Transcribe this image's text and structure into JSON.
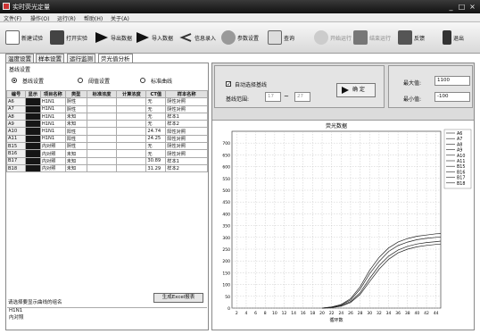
{
  "window": {
    "title": "实时荧光定量",
    "buttons": [
      "_",
      "□",
      "×"
    ]
  },
  "menu": [
    "文件(F)",
    "操作(O)",
    "运行(R)",
    "帮助(H)",
    "关于(A)"
  ],
  "toolbar": [
    {
      "label": "新建试验",
      "icon": "new-experiment-icon"
    },
    {
      "label": "打开实验",
      "icon": "open-experiment-icon"
    },
    {
      "label": "导出数据",
      "icon": "export-data-icon"
    },
    {
      "label": "导入数据",
      "icon": "import-data-icon"
    },
    {
      "label": "信息录入",
      "icon": "info-entry-icon"
    },
    {
      "label": "参数设置",
      "icon": "parameter-settings-icon"
    },
    {
      "label": "查询",
      "icon": "query-icon"
    },
    {
      "label": "开始运行",
      "icon": "start-run-icon"
    },
    {
      "label": "结束运行",
      "icon": "stop-run-icon"
    },
    {
      "label": "反馈",
      "icon": "feedback-icon"
    },
    {
      "label": "退出",
      "icon": "exit-icon"
    }
  ],
  "tabs": [
    "温度设置",
    "样本设置",
    "运行监测",
    "荧光值分析"
  ],
  "left": {
    "section_title": "基线设置",
    "radio_options": [
      {
        "label": "基线设置",
        "selected": true
      },
      {
        "label": "阈值设置",
        "selected": false
      },
      {
        "label": "标准曲线",
        "selected": false
      }
    ],
    "columns": [
      "编号",
      "显示",
      "项目名称",
      "类型",
      "标准浓度",
      "计算浓度",
      "CT值",
      "样本名称"
    ],
    "rows": [
      {
        "id": "A6",
        "name": "H1N1",
        "type": "阴性",
        "std": "",
        "calc": "",
        "ct": "无",
        "sample": "阴性对照"
      },
      {
        "id": "A7",
        "name": "H1N1",
        "type": "阴性",
        "std": "",
        "calc": "",
        "ct": "无",
        "sample": "阴性对照"
      },
      {
        "id": "A8",
        "name": "H1N1",
        "type": "未知",
        "std": "",
        "calc": "",
        "ct": "无",
        "sample": "样本1"
      },
      {
        "id": "A9",
        "name": "H1N1",
        "type": "未知",
        "std": "",
        "calc": "",
        "ct": "无",
        "sample": "样本2"
      },
      {
        "id": "A10",
        "name": "H1N1",
        "type": "阳性",
        "std": "",
        "calc": "",
        "ct": "24.74",
        "sample": "阳性对照"
      },
      {
        "id": "A11",
        "name": "H1N1",
        "type": "阳性",
        "std": "",
        "calc": "",
        "ct": "24.25",
        "sample": "阳性对照"
      },
      {
        "id": "B15",
        "name": "内对照",
        "type": "阴性",
        "std": "",
        "calc": "",
        "ct": "无",
        "sample": "阴性对照"
      },
      {
        "id": "B16",
        "name": "内对照",
        "type": "未知",
        "std": "",
        "calc": "",
        "ct": "无",
        "sample": "阴性对照"
      },
      {
        "id": "B17",
        "name": "内对照",
        "type": "未知",
        "std": "",
        "calc": "",
        "ct": "30.89",
        "sample": "样本1"
      },
      {
        "id": "B18",
        "name": "内对照",
        "type": "未知",
        "std": "",
        "calc": "",
        "ct": "31.29",
        "sample": "样本2"
      }
    ],
    "report_button": "生成Excel报表",
    "group_prompt": "请选择要显示曲线的组名",
    "groups": [
      "H1N1",
      "内对照"
    ]
  },
  "right": {
    "auto_baseline_label": "自动选择基线",
    "auto_baseline_checked": true,
    "baseline_range_label": "基线范围:",
    "range_from": "17",
    "range_sep": "~",
    "range_to": "27",
    "confirm_label": "确 定",
    "max_label": "最大值:",
    "max_value": "1100",
    "min_label": "最小值:",
    "min_value": "-100"
  },
  "chart_data": {
    "type": "line",
    "title": "荧光数据",
    "xlabel": "循环数",
    "ylabel": "",
    "xlim": [
      1,
      45
    ],
    "ylim": [
      0,
      750
    ],
    "xticks": [
      2,
      4,
      6,
      8,
      10,
      12,
      14,
      16,
      18,
      20,
      22,
      24,
      26,
      28,
      30,
      32,
      34,
      36,
      38,
      40,
      42,
      44
    ],
    "yticks": [
      0,
      50,
      100,
      150,
      200,
      250,
      300,
      350,
      400,
      450,
      500,
      550,
      600,
      650,
      700
    ],
    "legend": [
      "A6",
      "A7",
      "A8",
      "A9",
      "A10",
      "A11",
      "B15",
      "B16",
      "B17",
      "B18"
    ],
    "legend_position": "top-right",
    "grid": true,
    "series": [
      {
        "name": "A10",
        "x": [
          20,
          22,
          24,
          26,
          28,
          30,
          32,
          34,
          36,
          38,
          40,
          42,
          44,
          45
        ],
        "y": [
          0,
          5,
          15,
          40,
          90,
          160,
          215,
          255,
          280,
          295,
          305,
          310,
          315,
          316
        ]
      },
      {
        "name": "A11",
        "x": [
          20,
          22,
          24,
          26,
          28,
          30,
          32,
          34,
          36,
          38,
          40,
          42,
          44,
          45
        ],
        "y": [
          0,
          4,
          13,
          35,
          80,
          145,
          198,
          240,
          265,
          280,
          290,
          296,
          300,
          302
        ]
      },
      {
        "name": "B17",
        "x": [
          20,
          22,
          24,
          26,
          28,
          30,
          32,
          34,
          36,
          38,
          40,
          42,
          44,
          45
        ],
        "y": [
          0,
          3,
          10,
          28,
          65,
          125,
          180,
          220,
          246,
          262,
          272,
          278,
          282,
          284
        ]
      },
      {
        "name": "B18",
        "x": [
          20,
          22,
          24,
          26,
          28,
          30,
          32,
          34,
          36,
          38,
          40,
          42,
          44,
          45
        ],
        "y": [
          0,
          2,
          8,
          24,
          58,
          112,
          165,
          207,
          234,
          250,
          260,
          266,
          270,
          272
        ]
      }
    ]
  }
}
